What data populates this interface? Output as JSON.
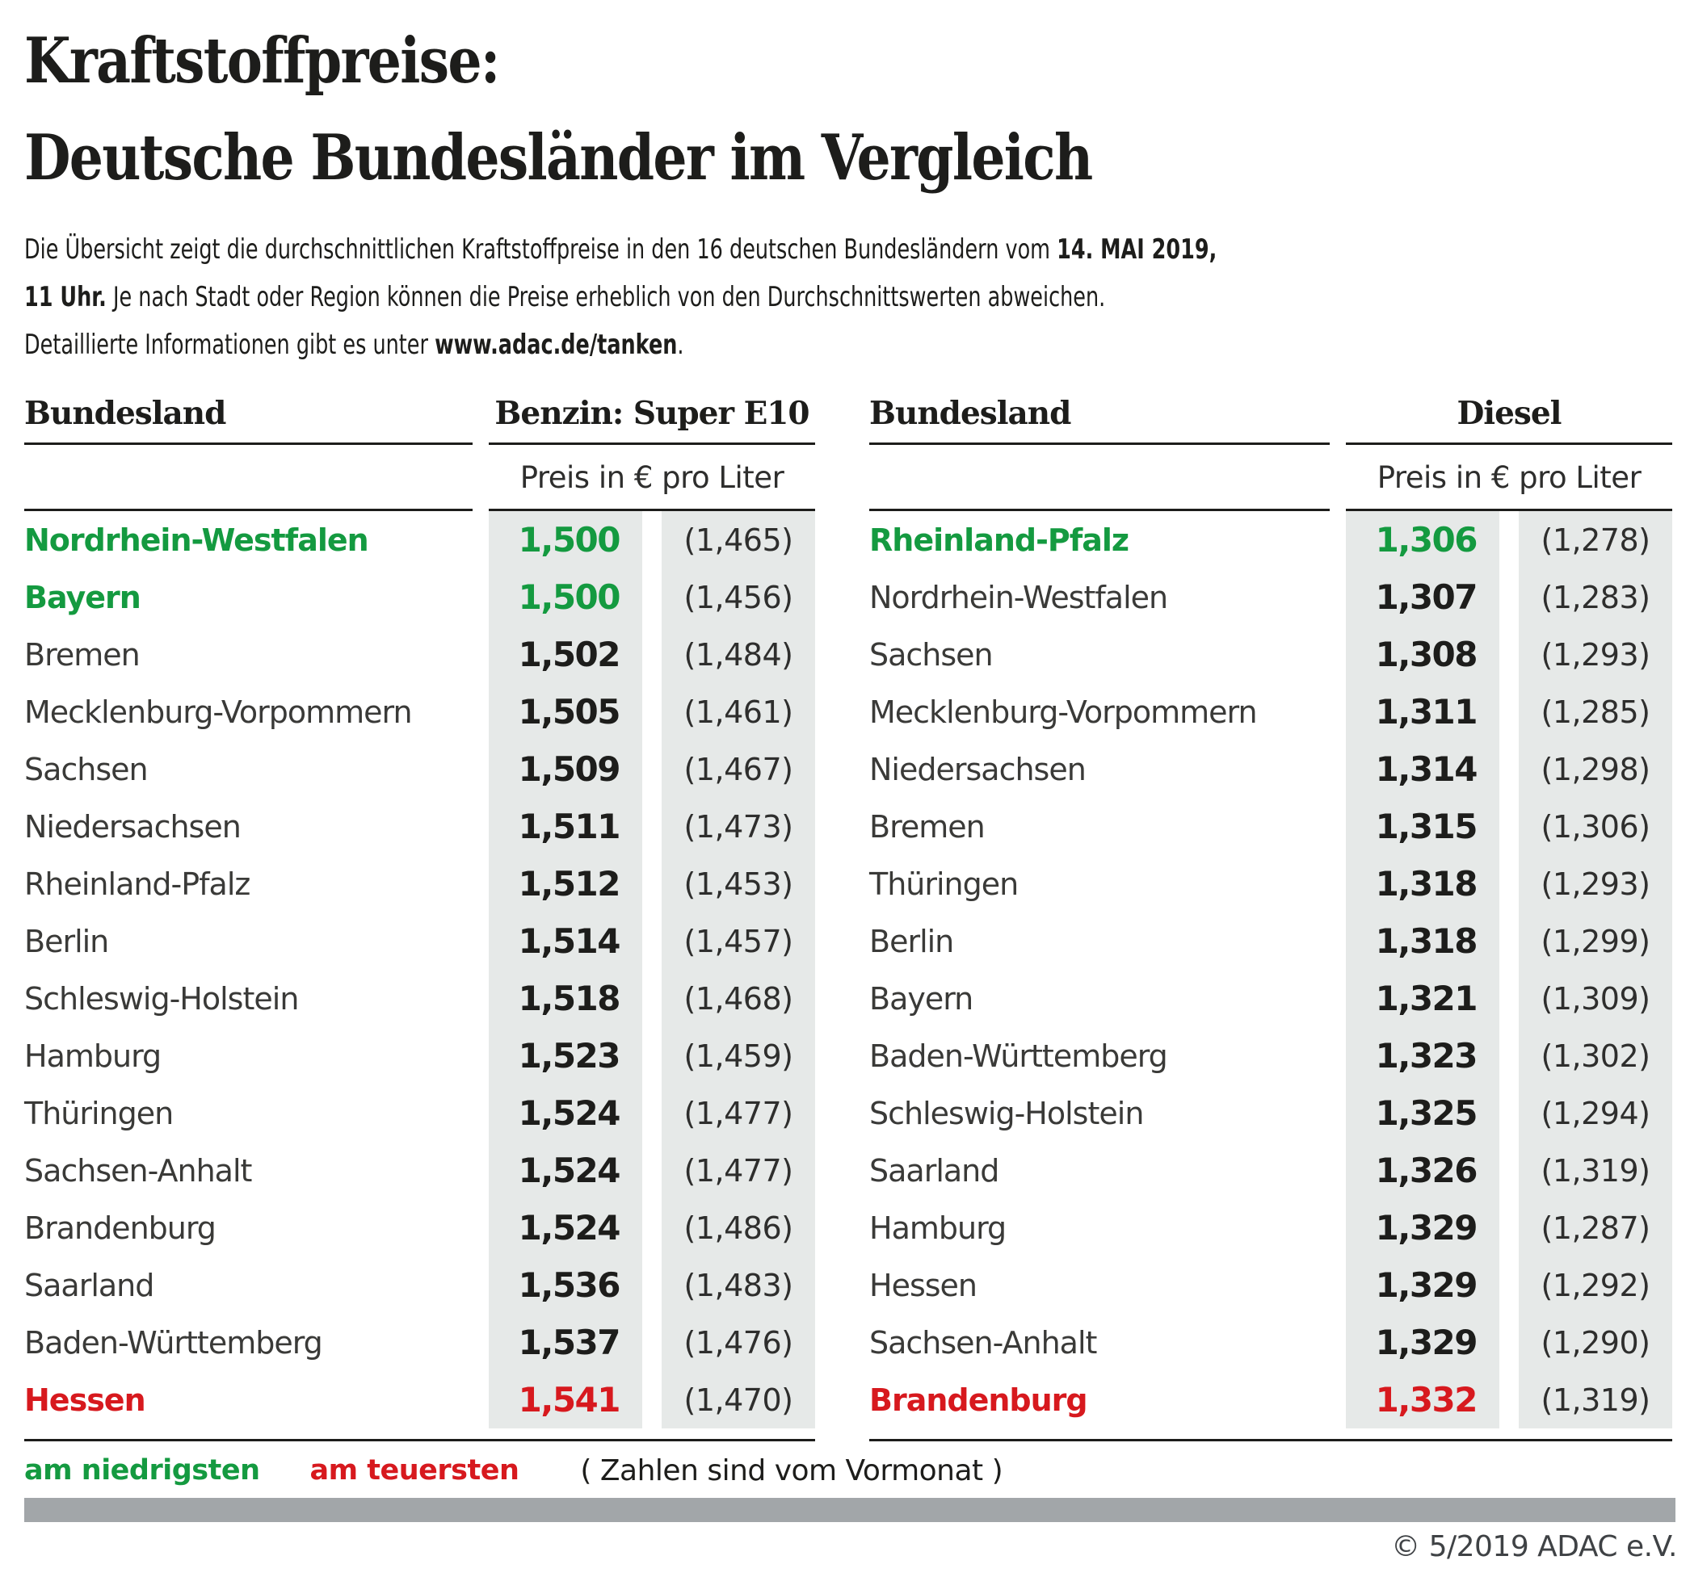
{
  "title": {
    "line1": "Kraftstoffpreise:",
    "line2": "Deutsche Bundesländer im Vergleich"
  },
  "intro": {
    "lines": [
      [
        {
          "t": "Die Übersicht zeigt die durchschnittlichen Kraftstoffpreise in den 16 deutschen Bundesländern vom ",
          "b": false
        },
        {
          "t": "14. MAI 2019,",
          "b": true
        }
      ],
      [
        {
          "t": "11 Uhr.",
          "b": true
        },
        {
          "t": " Je nach Stadt oder Region können die Preise erheblich von den Durchschnittswerten abweichen.",
          "b": false
        }
      ],
      [
        {
          "t": "Detaillierte Informationen gibt es unter ",
          "b": false
        },
        {
          "t": "www.adac.de/tanken",
          "b": true
        },
        {
          "t": ".",
          "b": false
        }
      ]
    ]
  },
  "tables": [
    {
      "id": "benzin",
      "bundesland_header": "Bundesland",
      "fuel_header": "Benzin: Super E10",
      "unit_header": "Preis in € pro Liter",
      "rows": [
        {
          "state": "Nordrhein-Westfalen",
          "price": "1,500",
          "previous": "(1,465)",
          "highlight": "lowest"
        },
        {
          "state": "Bayern",
          "price": "1,500",
          "previous": "(1,456)",
          "highlight": "lowest"
        },
        {
          "state": "Bremen",
          "price": "1,502",
          "previous": "(1,484)",
          "highlight": "none"
        },
        {
          "state": "Mecklenburg-Vorpommern",
          "price": "1,505",
          "previous": "(1,461)",
          "highlight": "none"
        },
        {
          "state": "Sachsen",
          "price": "1,509",
          "previous": "(1,467)",
          "highlight": "none"
        },
        {
          "state": "Niedersachsen",
          "price": "1,511",
          "previous": "(1,473)",
          "highlight": "none"
        },
        {
          "state": "Rheinland-Pfalz",
          "price": "1,512",
          "previous": "(1,453)",
          "highlight": "none"
        },
        {
          "state": "Berlin",
          "price": "1,514",
          "previous": "(1,457)",
          "highlight": "none"
        },
        {
          "state": "Schleswig-Holstein",
          "price": "1,518",
          "previous": "(1,468)",
          "highlight": "none"
        },
        {
          "state": "Hamburg",
          "price": "1,523",
          "previous": "(1,459)",
          "highlight": "none"
        },
        {
          "state": "Thüringen",
          "price": "1,524",
          "previous": "(1,477)",
          "highlight": "none"
        },
        {
          "state": "Sachsen-Anhalt",
          "price": "1,524",
          "previous": "(1,477)",
          "highlight": "none"
        },
        {
          "state": "Brandenburg",
          "price": "1,524",
          "previous": "(1,486)",
          "highlight": "none"
        },
        {
          "state": "Saarland",
          "price": "1,536",
          "previous": "(1,483)",
          "highlight": "none"
        },
        {
          "state": "Baden-Württemberg",
          "price": "1,537",
          "previous": "(1,476)",
          "highlight": "none"
        },
        {
          "state": "Hessen",
          "price": "1,541",
          "previous": "(1,470)",
          "highlight": "highest"
        }
      ]
    },
    {
      "id": "diesel",
      "bundesland_header": "Bundesland",
      "fuel_header": "Diesel",
      "unit_header": "Preis in € pro Liter",
      "rows": [
        {
          "state": "Rheinland-Pfalz",
          "price": "1,306",
          "previous": "(1,278)",
          "highlight": "lowest"
        },
        {
          "state": "Nordrhein-Westfalen",
          "price": "1,307",
          "previous": "(1,283)",
          "highlight": "none"
        },
        {
          "state": "Sachsen",
          "price": "1,308",
          "previous": "(1,293)",
          "highlight": "none"
        },
        {
          "state": "Mecklenburg-Vorpommern",
          "price": "1,311",
          "previous": "(1,285)",
          "highlight": "none"
        },
        {
          "state": "Niedersachsen",
          "price": "1,314",
          "previous": "(1,298)",
          "highlight": "none"
        },
        {
          "state": "Bremen",
          "price": "1,315",
          "previous": "(1,306)",
          "highlight": "none"
        },
        {
          "state": "Thüringen",
          "price": "1,318",
          "previous": "(1,293)",
          "highlight": "none"
        },
        {
          "state": "Berlin",
          "price": "1,318",
          "previous": "(1,299)",
          "highlight": "none"
        },
        {
          "state": "Bayern",
          "price": "1,321",
          "previous": "(1,309)",
          "highlight": "none"
        },
        {
          "state": "Baden-Württemberg",
          "price": "1,323",
          "previous": "(1,302)",
          "highlight": "none"
        },
        {
          "state": "Schleswig-Holstein",
          "price": "1,325",
          "previous": "(1,294)",
          "highlight": "none"
        },
        {
          "state": "Saarland",
          "price": "1,326",
          "previous": "(1,319)",
          "highlight": "none"
        },
        {
          "state": "Hamburg",
          "price": "1,329",
          "previous": "(1,287)",
          "highlight": "none"
        },
        {
          "state": "Hessen",
          "price": "1,329",
          "previous": "(1,292)",
          "highlight": "none"
        },
        {
          "state": "Sachsen-Anhalt",
          "price": "1,329",
          "previous": "(1,290)",
          "highlight": "none"
        },
        {
          "state": "Brandenburg",
          "price": "1,332",
          "previous": "(1,319)",
          "highlight": "highest"
        }
      ]
    }
  ],
  "legend": {
    "lowest_label": "am niedrigsten",
    "highest_label": "am teuersten",
    "note": "( Zahlen sind vom Vormonat )"
  },
  "footer": {
    "copyright": "© 5/2019 ADAC e.V."
  },
  "colors": {
    "green": "#149a40",
    "red": "#d7191e",
    "cellbg": "#e6e9e8",
    "bar": "#a2a6a9",
    "ink": "#1d1d1b",
    "state": "#3a3a38"
  },
  "chart_data": [
    {
      "type": "table",
      "title": "Benzin: Super E10",
      "unit": "Preis in € pro Liter",
      "columns": [
        "Bundesland",
        "Preis in € pro Liter",
        "Vormonat"
      ],
      "rows": [
        [
          "Nordrhein-Westfalen",
          1.5,
          1.465
        ],
        [
          "Bayern",
          1.5,
          1.456
        ],
        [
          "Bremen",
          1.502,
          1.484
        ],
        [
          "Mecklenburg-Vorpommern",
          1.505,
          1.461
        ],
        [
          "Sachsen",
          1.509,
          1.467
        ],
        [
          "Niedersachsen",
          1.511,
          1.473
        ],
        [
          "Rheinland-Pfalz",
          1.512,
          1.453
        ],
        [
          "Berlin",
          1.514,
          1.457
        ],
        [
          "Schleswig-Holstein",
          1.518,
          1.468
        ],
        [
          "Hamburg",
          1.523,
          1.459
        ],
        [
          "Thüringen",
          1.524,
          1.477
        ],
        [
          "Sachsen-Anhalt",
          1.524,
          1.477
        ],
        [
          "Brandenburg",
          1.524,
          1.486
        ],
        [
          "Saarland",
          1.536,
          1.483
        ],
        [
          "Baden-Württemberg",
          1.537,
          1.476
        ],
        [
          "Hessen",
          1.541,
          1.47
        ]
      ],
      "annotations": {
        "lowest": [
          "Nordrhein-Westfalen",
          "Bayern"
        ],
        "highest": [
          "Hessen"
        ]
      }
    },
    {
      "type": "table",
      "title": "Diesel",
      "unit": "Preis in € pro Liter",
      "columns": [
        "Bundesland",
        "Preis in € pro Liter",
        "Vormonat"
      ],
      "rows": [
        [
          "Rheinland-Pfalz",
          1.306,
          1.278
        ],
        [
          "Nordrhein-Westfalen",
          1.307,
          1.283
        ],
        [
          "Sachsen",
          1.308,
          1.293
        ],
        [
          "Mecklenburg-Vorpommern",
          1.311,
          1.285
        ],
        [
          "Niedersachsen",
          1.314,
          1.298
        ],
        [
          "Bremen",
          1.315,
          1.306
        ],
        [
          "Thüringen",
          1.318,
          1.293
        ],
        [
          "Berlin",
          1.318,
          1.299
        ],
        [
          "Bayern",
          1.321,
          1.309
        ],
        [
          "Baden-Württemberg",
          1.323,
          1.302
        ],
        [
          "Schleswig-Holstein",
          1.325,
          1.294
        ],
        [
          "Saarland",
          1.326,
          1.319
        ],
        [
          "Hamburg",
          1.329,
          1.287
        ],
        [
          "Hessen",
          1.329,
          1.292
        ],
        [
          "Sachsen-Anhalt",
          1.329,
          1.29
        ],
        [
          "Brandenburg",
          1.332,
          1.319
        ]
      ],
      "annotations": {
        "lowest": [
          "Rheinland-Pfalz"
        ],
        "highest": [
          "Brandenburg"
        ]
      }
    }
  ]
}
